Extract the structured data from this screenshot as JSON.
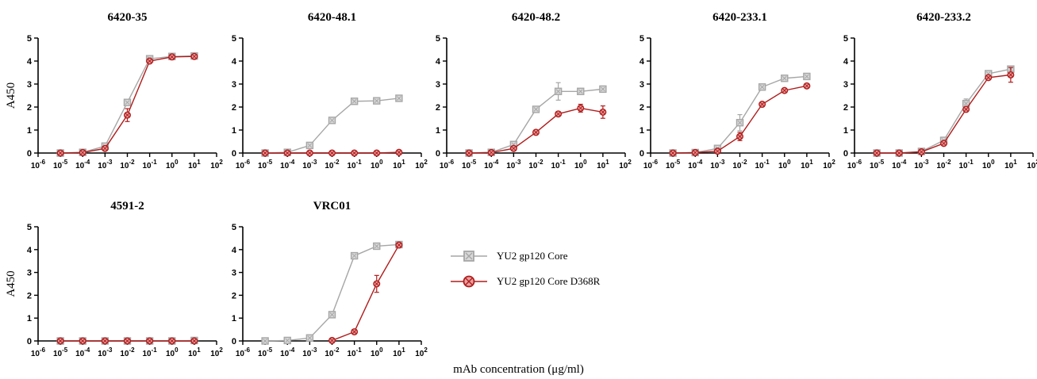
{
  "figure": {
    "shared_xlabel": "mAb concentration (μg/ml)",
    "colors": {
      "series_a": "#a6a6a6",
      "series_b": "#b01c1c"
    },
    "legend": [
      {
        "label": "YU2 gp120 Core",
        "marker": "square-x",
        "color": "#a6a6a6"
      },
      {
        "label": "YU2 gp120 Core D368R",
        "marker": "circle-x",
        "color": "#b01c1c"
      }
    ]
  },
  "chart_data": [
    {
      "type": "line",
      "title": "6420-35",
      "ylabel": "A450",
      "xscale": "log",
      "xlim": [
        -6,
        2
      ],
      "ylim": [
        0,
        5
      ],
      "yticks": [
        "0",
        "1",
        "2",
        "3",
        "4",
        "5"
      ],
      "x": [
        1e-05,
        0.0001,
        0.001,
        0.01,
        0.1,
        1,
        10
      ],
      "series": [
        {
          "name": "YU2 gp120 Core",
          "values": [
            0.0,
            0.03,
            0.3,
            2.2,
            4.1,
            4.2,
            4.22
          ],
          "err": [
            0,
            0,
            0.05,
            0.1,
            0.05,
            0.05,
            0.05
          ]
        },
        {
          "name": "YU2 gp120 Core D368R",
          "values": [
            0.0,
            0.02,
            0.2,
            1.65,
            4.0,
            4.18,
            4.2
          ],
          "err": [
            0,
            0,
            0.05,
            0.28,
            0.05,
            0.05,
            0.05
          ]
        }
      ]
    },
    {
      "type": "line",
      "title": "6420-48.1",
      "ylabel": "",
      "xscale": "log",
      "xlim": [
        -6,
        2
      ],
      "ylim": [
        0,
        5
      ],
      "yticks": [
        "0",
        "1",
        "2",
        "3",
        "4",
        "5"
      ],
      "x": [
        1e-05,
        0.0001,
        0.001,
        0.01,
        0.1,
        1,
        10
      ],
      "series": [
        {
          "name": "YU2 gp120 Core",
          "values": [
            0.0,
            0.03,
            0.33,
            1.42,
            2.25,
            2.27,
            2.38
          ],
          "err": [
            0,
            0,
            0.04,
            0.05,
            0.05,
            0.05,
            0.05
          ]
        },
        {
          "name": "YU2 gp120 Core D368R",
          "values": [
            0.0,
            0.0,
            0.0,
            0.0,
            0.0,
            0.0,
            0.03
          ],
          "err": [
            0,
            0,
            0,
            0,
            0,
            0,
            0
          ]
        }
      ]
    },
    {
      "type": "line",
      "title": "6420-48.2",
      "ylabel": "",
      "xscale": "log",
      "xlim": [
        -6,
        2
      ],
      "ylim": [
        0,
        5
      ],
      "yticks": [
        "0",
        "1",
        "2",
        "3",
        "4",
        "5"
      ],
      "x": [
        1e-05,
        0.0001,
        0.001,
        0.01,
        0.1,
        1,
        10
      ],
      "series": [
        {
          "name": "YU2 gp120 Core",
          "values": [
            0.0,
            0.03,
            0.37,
            1.9,
            2.68,
            2.68,
            2.78
          ],
          "err": [
            0,
            0,
            0.05,
            0.06,
            0.38,
            0.1,
            0.07
          ]
        },
        {
          "name": "YU2 gp120 Core D368R",
          "values": [
            0.0,
            0.02,
            0.2,
            0.9,
            1.7,
            1.95,
            1.78
          ],
          "err": [
            0,
            0,
            0.04,
            0.05,
            0.05,
            0.17,
            0.27
          ]
        }
      ]
    },
    {
      "type": "line",
      "title": "6420-233.1",
      "ylabel": "",
      "xscale": "log",
      "xlim": [
        -6,
        2
      ],
      "ylim": [
        0,
        5
      ],
      "yticks": [
        "0",
        "1",
        "2",
        "3",
        "4",
        "5"
      ],
      "x": [
        1e-05,
        0.0001,
        0.001,
        0.01,
        0.1,
        1,
        10
      ],
      "series": [
        {
          "name": "YU2 gp120 Core",
          "values": [
            0.0,
            0.02,
            0.2,
            1.32,
            2.87,
            3.25,
            3.33
          ],
          "err": [
            0,
            0,
            0.04,
            0.35,
            0.05,
            0.05,
            0.05
          ]
        },
        {
          "name": "YU2 gp120 Core D368R",
          "values": [
            0.0,
            0.02,
            0.08,
            0.72,
            2.12,
            2.72,
            2.92
          ],
          "err": [
            0,
            0,
            0.03,
            0.18,
            0.05,
            0.05,
            0.05
          ]
        }
      ]
    },
    {
      "type": "line",
      "title": "6420-233.2",
      "ylabel": "",
      "xscale": "log",
      "xlim": [
        -6,
        2
      ],
      "ylim": [
        0,
        5
      ],
      "yticks": [
        "0",
        "1",
        "2",
        "3",
        "4",
        "5"
      ],
      "x": [
        1e-05,
        0.0001,
        0.001,
        0.01,
        0.1,
        1,
        10
      ],
      "series": [
        {
          "name": "YU2 gp120 Core",
          "values": [
            0.0,
            0.0,
            0.07,
            0.55,
            2.15,
            3.45,
            3.65
          ],
          "err": [
            0,
            0,
            0.03,
            0.05,
            0.2,
            0.07,
            0.07
          ]
        },
        {
          "name": "YU2 gp120 Core D368R",
          "values": [
            0.0,
            0.0,
            0.05,
            0.42,
            1.9,
            3.28,
            3.4
          ],
          "err": [
            0,
            0,
            0.03,
            0.04,
            0.07,
            0.07,
            0.32
          ]
        }
      ]
    },
    {
      "type": "line",
      "title": "4591-2",
      "ylabel": "A450",
      "xscale": "log",
      "xlim": [
        -6,
        2
      ],
      "ylim": [
        0,
        5
      ],
      "yticks": [
        "0",
        "1",
        "2",
        "3",
        "4",
        "5"
      ],
      "x": [
        1e-05,
        0.0001,
        0.001,
        0.01,
        0.1,
        1,
        10
      ],
      "series": [
        {
          "name": "YU2 gp120 Core",
          "values": [
            0.0,
            0.0,
            0.0,
            0.0,
            0.0,
            0.0,
            0.02
          ],
          "err": [
            0,
            0,
            0,
            0,
            0,
            0,
            0
          ]
        },
        {
          "name": "YU2 gp120 Core D368R",
          "values": [
            0.0,
            0.0,
            0.0,
            0.0,
            0.0,
            0.0,
            0.0
          ],
          "err": [
            0,
            0,
            0,
            0,
            0,
            0,
            0
          ]
        }
      ]
    },
    {
      "type": "line",
      "title": "VRC01",
      "ylabel": "",
      "xscale": "log",
      "xlim": [
        -6,
        2
      ],
      "ylim": [
        0,
        5
      ],
      "yticks": [
        "0",
        "1",
        "2",
        "3",
        "4",
        "5"
      ],
      "x": [
        1e-05,
        0.0001,
        0.001,
        0.01,
        0.1,
        1,
        10
      ],
      "series": [
        {
          "name": "YU2 gp120 Core",
          "values": [
            0.0,
            0.02,
            0.13,
            1.15,
            3.73,
            4.15,
            4.22
          ],
          "err": [
            0,
            0,
            0.04,
            0.06,
            0.05,
            0.05,
            0.05
          ]
        },
        {
          "name": "YU2 gp120 Core D368R",
          "values": [
            null,
            null,
            null,
            0.02,
            0.4,
            2.5,
            4.2
          ],
          "err": [
            0,
            0,
            0,
            0,
            0.05,
            0.37,
            0.07
          ]
        }
      ]
    }
  ]
}
